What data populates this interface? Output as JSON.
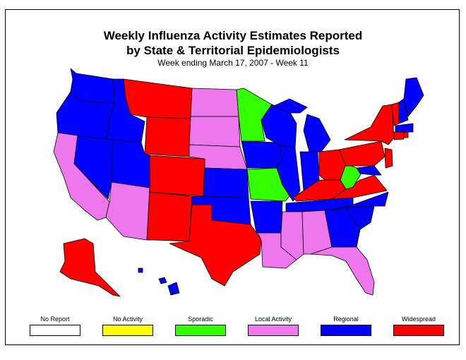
{
  "title_line1": "Weekly Influenza Activity Estimates Reported",
  "title_line2": "by State & Territorial Epidemiologists",
  "subtitle": "Week ending March 17, 2007 - Week 11",
  "colors": {
    "no_report": "#ffffff",
    "no_activity": "#ffff00",
    "sporadic": "#33ff00",
    "local": "#ee77ee",
    "regional": "#0000ff",
    "widespread": "#ff0000"
  },
  "legend": [
    {
      "label": "No Report",
      "color": "#ffffff"
    },
    {
      "label": "No Activity",
      "color": "#ffff00"
    },
    {
      "label": "Sporadic",
      "color": "#33ff00"
    },
    {
      "label": "Local Activity",
      "color": "#ee77ee"
    },
    {
      "label": "Regional",
      "color": "#0000ff"
    },
    {
      "label": "Widespread",
      "color": "#ff0000"
    }
  ]
}
